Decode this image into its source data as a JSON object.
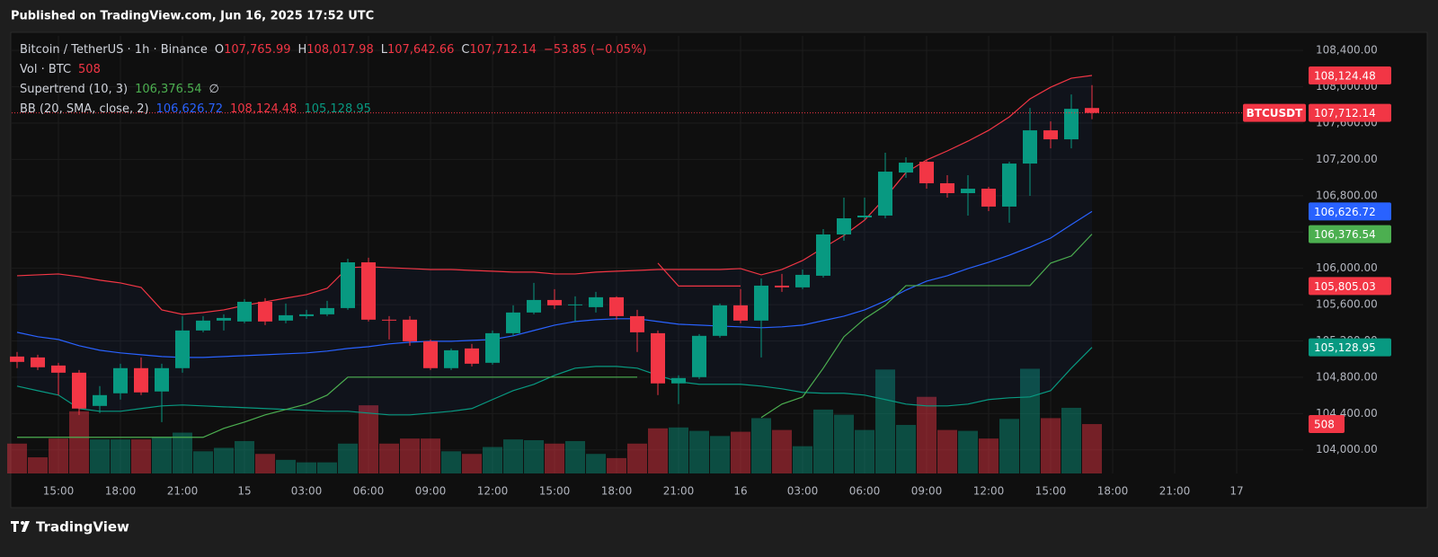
{
  "header": {
    "published": "Published on TradingView.com, Jun 16, 2025 17:52 UTC"
  },
  "footer": {
    "brand": "TradingView"
  },
  "chart_data": {
    "type": "candlestick",
    "symbol": "Bitcoin / TetherUS · 1h · Binance",
    "ticker": "BTCUSDT",
    "ohlc_legend": [
      {
        "label": "O",
        "text": "107,765.99"
      },
      {
        "label": "H",
        "text": "108,017.98"
      },
      {
        "label": "L",
        "text": "107,642.66"
      },
      {
        "label": "C",
        "text": "107,712.14"
      }
    ],
    "change": "−53.85 (−0.05%)",
    "last_close_label": "107,712.14",
    "up_color": "#089981",
    "down_color": "#f23645",
    "x": [
      "2025-06-14T13:00",
      "2025-06-14T14:00",
      "2025-06-14T15:00",
      "2025-06-14T16:00",
      "2025-06-14T17:00",
      "2025-06-14T18:00",
      "2025-06-14T19:00",
      "2025-06-14T20:00",
      "2025-06-14T21:00",
      "2025-06-14T22:00",
      "2025-06-14T23:00",
      "2025-06-15T00:00",
      "2025-06-15T01:00",
      "2025-06-15T02:00",
      "2025-06-15T03:00",
      "2025-06-15T04:00",
      "2025-06-15T05:00",
      "2025-06-15T06:00",
      "2025-06-15T07:00",
      "2025-06-15T08:00",
      "2025-06-15T09:00",
      "2025-06-15T10:00",
      "2025-06-15T11:00",
      "2025-06-15T12:00",
      "2025-06-15T13:00",
      "2025-06-15T14:00",
      "2025-06-15T15:00",
      "2025-06-15T16:00",
      "2025-06-15T17:00",
      "2025-06-15T18:00",
      "2025-06-15T19:00",
      "2025-06-15T20:00",
      "2025-06-15T21:00",
      "2025-06-15T22:00",
      "2025-06-15T23:00",
      "2025-06-16T00:00",
      "2025-06-16T01:00",
      "2025-06-16T02:00",
      "2025-06-16T03:00",
      "2025-06-16T04:00",
      "2025-06-16T05:00",
      "2025-06-16T06:00",
      "2025-06-16T07:00",
      "2025-06-16T08:00",
      "2025-06-16T09:00",
      "2025-06-16T10:00",
      "2025-06-16T11:00",
      "2025-06-16T12:00",
      "2025-06-16T13:00",
      "2025-06-16T14:00",
      "2025-06-16T15:00",
      "2025-06-16T16:00",
      "2025-06-16T17:00"
    ],
    "open": [
      105028,
      105018,
      104929,
      104850,
      104484,
      104623,
      104900,
      104643,
      104900,
      105315,
      105424,
      105414,
      105631,
      105424,
      105473,
      105493,
      105562,
      106066,
      105434,
      105434,
      105196,
      104900,
      105117,
      104959,
      105285,
      105513,
      105651,
      105592,
      105572,
      105681,
      105473,
      105285,
      104732,
      104801,
      105256,
      105592,
      105424,
      105809,
      105790,
      105918,
      106373,
      106561,
      106581,
      107055,
      107174,
      106937,
      106828,
      106877,
      106680,
      107154,
      107520,
      107421,
      107765.99
    ],
    "high": [
      105078,
      105048,
      104959,
      104880,
      104702,
      104949,
      105018,
      104949,
      105473,
      105473,
      105493,
      105661,
      105671,
      105612,
      105542,
      105641,
      106106,
      106116,
      105473,
      105473,
      105216,
      105117,
      105167,
      105315,
      105592,
      105839,
      105770,
      105691,
      105740,
      105691,
      105542,
      105315,
      104821,
      105275,
      105612,
      105770,
      105888,
      105938,
      105987,
      106432,
      106778,
      106778,
      107273,
      107223,
      107194,
      107026,
      107026,
      106897,
      107174,
      107767,
      107619,
      107916,
      108017.98
    ],
    "low": [
      104900,
      104880,
      104603,
      104385,
      104405,
      104554,
      104603,
      104306,
      104850,
      105295,
      105315,
      105394,
      105374,
      105394,
      105444,
      105473,
      105542,
      105414,
      105216,
      105147,
      104880,
      104880,
      104919,
      104939,
      105256,
      105493,
      105552,
      105414,
      105513,
      105434,
      105078,
      104603,
      104504,
      104781,
      105236,
      105394,
      105018,
      105740,
      105770,
      105898,
      106304,
      106531,
      106551,
      106996,
      106877,
      106778,
      106581,
      106630,
      106502,
      106798,
      107322,
      107322,
      107642.66
    ],
    "close": [
      104969,
      104910,
      104850,
      104455,
      104603,
      104900,
      104633,
      104900,
      105315,
      105424,
      105453,
      105631,
      105414,
      105483,
      105493,
      105562,
      106066,
      105434,
      105424,
      105196,
      104900,
      105097,
      104949,
      105285,
      105513,
      105651,
      105592,
      105602,
      105681,
      105473,
      105295,
      104732,
      104791,
      105256,
      105592,
      105424,
      105809,
      105790,
      105928,
      106373,
      106551,
      106581,
      107065,
      107164,
      106937,
      106828,
      106877,
      106680,
      107154,
      107520,
      107421,
      107757,
      107712.14
    ],
    "volume": {
      "name": "Vol · BTC",
      "ylim": [
        0,
        4500
      ],
      "values": [
        307,
        166,
        359,
        639,
        350,
        350,
        350,
        377,
        420,
        228,
        263,
        333,
        201,
        140,
        114,
        114,
        307,
        701,
        307,
        359,
        359,
        228,
        201,
        272,
        350,
        342,
        307,
        333,
        201,
        158,
        307,
        464,
        473,
        438,
        385,
        429,
        569,
        447,
        280,
        657,
        604,
        447,
        1069,
        499,
        788,
        447,
        438,
        359,
        561,
        1077,
        569,
        675,
        508
      ]
    },
    "supertrend": {
      "name": "Supertrend (10, 3)",
      "symbol": "∅",
      "up_color": "#4caf50",
      "down_color": "#f23645",
      "up_label": "106,376.54",
      "down_label": "105,805.03",
      "up": [
        104138,
        104138,
        104138,
        104138,
        104138,
        104138,
        104138,
        104138,
        104138,
        104138,
        104237,
        104306,
        104385,
        104445,
        104504,
        104603,
        104801,
        104801,
        104801,
        104801,
        104801,
        104801,
        104801,
        104801,
        104801,
        104801,
        104801,
        104801,
        104801,
        104801,
        104801,
        null,
        null,
        null,
        null,
        null,
        104356,
        104504,
        104583,
        104900,
        105246,
        105444,
        105592,
        105809,
        105809,
        105809,
        105809,
        105809,
        105809,
        105809,
        106057,
        106136,
        106376.54
      ],
      "down": [
        null,
        null,
        null,
        null,
        null,
        null,
        null,
        null,
        null,
        null,
        null,
        null,
        null,
        null,
        null,
        null,
        null,
        null,
        null,
        null,
        null,
        null,
        null,
        null,
        null,
        null,
        null,
        null,
        null,
        null,
        null,
        106057,
        105805.03,
        105805.03,
        105805.03,
        105805.03,
        null,
        null,
        null,
        null,
        null,
        null,
        null,
        null,
        null,
        null,
        null,
        null,
        null,
        null,
        null,
        null,
        null
      ]
    },
    "bollinger": {
      "name": "BB (20, SMA, close, 2)",
      "basis": {
        "color": "#2962ff",
        "value_label": "106,626.72",
        "values": [
          105295,
          105246,
          105216,
          105147,
          105097,
          105068,
          105048,
          105028,
          105018,
          105018,
          105028,
          105038,
          105048,
          105058,
          105068,
          105088,
          105117,
          105137,
          105167,
          105186,
          105196,
          105196,
          105206,
          105216,
          105256,
          105315,
          105374,
          105414,
          105434,
          105444,
          105444,
          105414,
          105384,
          105374,
          105364,
          105355,
          105345,
          105355,
          105374,
          105424,
          105473,
          105542,
          105641,
          105760,
          105859,
          105918,
          105997,
          106066,
          106145,
          106234,
          106333,
          106482,
          106626.72
        ]
      },
      "upper": {
        "color": "#f23645",
        "value_label": "108,124.48",
        "values": [
          105918,
          105928,
          105938,
          105908,
          105869,
          105839,
          105790,
          105542,
          105493,
          105513,
          105542,
          105592,
          105631,
          105671,
          105710,
          105780,
          106007,
          106017,
          106007,
          105997,
          105987,
          105987,
          105977,
          105968,
          105958,
          105958,
          105938,
          105938,
          105958,
          105968,
          105977,
          105987,
          105987,
          105987,
          105987,
          105997,
          105928,
          105987,
          106086,
          106225,
          106363,
          106531,
          106778,
          107055,
          107194,
          107293,
          107401,
          107520,
          107668,
          107866,
          107995,
          108094,
          108124.48
        ]
      },
      "lower": {
        "color": "#089981",
        "value_label": "105,128.95",
        "values": [
          104702,
          104652,
          104603,
          104455,
          104425,
          104425,
          104455,
          104484,
          104494,
          104484,
          104474,
          104465,
          104455,
          104445,
          104435,
          104425,
          104425,
          104405,
          104385,
          104385,
          104405,
          104425,
          104455,
          104554,
          104652,
          104722,
          104821,
          104900,
          104919,
          104919,
          104900,
          104821,
          104751,
          104722,
          104722,
          104722,
          104702,
          104672,
          104633,
          104623,
          104623,
          104603,
          104554,
          104504,
          104484,
          104484,
          104504,
          104554,
          104573,
          104583,
          104652,
          104900,
          105128.95
        ]
      }
    },
    "ylim": [
      103740,
      108560
    ],
    "yticks": [
      {
        "value": 104000,
        "label": "104,000.00"
      },
      {
        "value": 104400,
        "label": "104,400.00"
      },
      {
        "value": 104800,
        "label": "104,800.00"
      },
      {
        "value": 105200,
        "label": "105,200.00"
      },
      {
        "value": 105600,
        "label": "105,600.00"
      },
      {
        "value": 106000,
        "label": "106,000.00"
      },
      {
        "value": 106400,
        "label": "106,400.00"
      },
      {
        "value": 106800,
        "label": "106,800.00"
      },
      {
        "value": 107200,
        "label": "107,200.00"
      },
      {
        "value": 107600,
        "label": "107,600.00"
      },
      {
        "value": 108000,
        "label": "108,000.00"
      },
      {
        "value": 108400,
        "label": "108,400.00"
      }
    ],
    "xticks": [
      {
        "value": "2025-06-14T15:00",
        "label": "15:00"
      },
      {
        "value": "2025-06-14T18:00",
        "label": "18:00"
      },
      {
        "value": "2025-06-14T21:00",
        "label": "21:00"
      },
      {
        "value": "2025-06-15T00:00",
        "label": "15"
      },
      {
        "value": "2025-06-15T03:00",
        "label": "03:00"
      },
      {
        "value": "2025-06-15T06:00",
        "label": "06:00"
      },
      {
        "value": "2025-06-15T09:00",
        "label": "09:00"
      },
      {
        "value": "2025-06-15T12:00",
        "label": "12:00"
      },
      {
        "value": "2025-06-15T15:00",
        "label": "15:00"
      },
      {
        "value": "2025-06-15T18:00",
        "label": "18:00"
      },
      {
        "value": "2025-06-15T21:00",
        "label": "21:00"
      },
      {
        "value": "2025-06-16T00:00",
        "label": "16"
      },
      {
        "value": "2025-06-16T03:00",
        "label": "03:00"
      },
      {
        "value": "2025-06-16T06:00",
        "label": "06:00"
      },
      {
        "value": "2025-06-16T09:00",
        "label": "09:00"
      },
      {
        "value": "2025-06-16T12:00",
        "label": "12:00"
      },
      {
        "value": "2025-06-16T15:00",
        "label": "15:00"
      },
      {
        "value": "2025-06-16T18:00",
        "label": "18:00"
      },
      {
        "value": "2025-06-16T21:00",
        "label": "21:00"
      },
      {
        "value": "2025-06-17T00:00",
        "label": "17"
      }
    ],
    "grid": true
  }
}
